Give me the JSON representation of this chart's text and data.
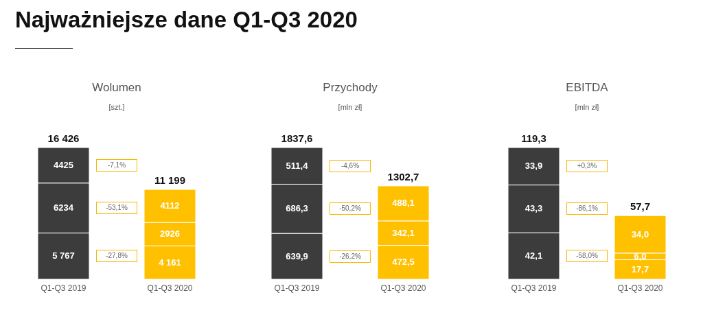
{
  "chart_data": [
    {
      "type": "other",
      "title": "Najważniejsze dane Q1-Q3 2020"
    },
    {
      "type": "bar",
      "title": "Wolumen",
      "subtitle": "[szt.]",
      "categories": [
        "Q1-Q3 2019",
        "Q1-Q3 2020"
      ],
      "stacked": true,
      "series": [
        {
          "colors": [
            "#3c3c3c",
            "#ffc000"
          ],
          "values": [
            5767,
            4161
          ],
          "value_labels": [
            "5 767",
            "4 161"
          ]
        },
        {
          "colors": [
            "#3c3c3c",
            "#ffc000"
          ],
          "values": [
            6234,
            2926
          ],
          "value_labels": [
            "6234",
            "2926"
          ]
        },
        {
          "colors": [
            "#3c3c3c",
            "#ffc000"
          ],
          "values": [
            4425,
            4112
          ],
          "value_labels": [
            "4425",
            "4112"
          ]
        }
      ],
      "totals": [
        "16 426",
        "11 199"
      ],
      "annotations": [
        "-7,1%",
        "-53,1%",
        "-27,8%"
      ]
    },
    {
      "type": "bar",
      "title": "Przychody",
      "subtitle": "[mln zł]",
      "categories": [
        "Q1-Q3 2019",
        "Q1-Q3 2020"
      ],
      "stacked": true,
      "series": [
        {
          "colors": [
            "#3c3c3c",
            "#ffc000"
          ],
          "values": [
            639.9,
            472.5
          ],
          "value_labels": [
            "639,9",
            "472,5"
          ]
        },
        {
          "colors": [
            "#3c3c3c",
            "#ffc000"
          ],
          "values": [
            686.3,
            342.1
          ],
          "value_labels": [
            "686,3",
            "342,1"
          ]
        },
        {
          "colors": [
            "#3c3c3c",
            "#ffc000"
          ],
          "values": [
            511.4,
            488.1
          ],
          "value_labels": [
            "511,4",
            "488,1"
          ]
        }
      ],
      "totals": [
        "1837,6",
        "1302,7"
      ],
      "annotations": [
        "-4,6%",
        "-50,2%",
        "-26,2%"
      ]
    },
    {
      "type": "bar",
      "title": "EBITDA",
      "subtitle": "[mln zł]",
      "categories": [
        "Q1-Q3 2019",
        "Q1-Q3 2020"
      ],
      "stacked": true,
      "series": [
        {
          "colors": [
            "#3c3c3c",
            "#ffc000"
          ],
          "values": [
            42.1,
            17.7
          ],
          "value_labels": [
            "42,1",
            "17,7"
          ]
        },
        {
          "colors": [
            "#3c3c3c",
            "#ffc000"
          ],
          "values": [
            43.3,
            6.0
          ],
          "value_labels": [
            "43,3",
            "6,0"
          ]
        },
        {
          "colors": [
            "#3c3c3c",
            "#ffc000"
          ],
          "values": [
            33.9,
            34.0
          ],
          "value_labels": [
            "33,9",
            "34,0"
          ]
        }
      ],
      "totals": [
        "119,3",
        "57,7"
      ],
      "annotations": [
        "+0,3%",
        "-86,1%",
        "-58,0%"
      ]
    }
  ]
}
